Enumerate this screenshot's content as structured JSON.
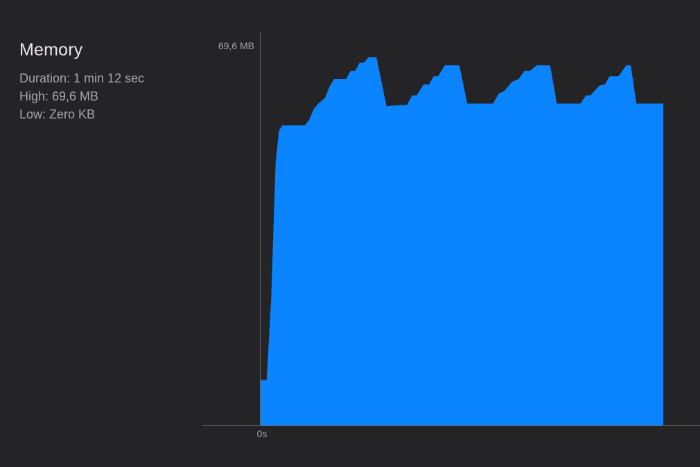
{
  "panel": {
    "title": "Memory",
    "stats": {
      "duration": "Duration: 1 min 12 sec",
      "high": "High: 69,6 MB",
      "low": "Low: Zero KB"
    }
  },
  "chart_data": {
    "type": "area",
    "title": "",
    "xlabel": "",
    "ylabel": "",
    "y_unit": "MB",
    "ylim": [
      0,
      69.6
    ],
    "y_tick_label": "69,6 MB",
    "x_tick_label": "0s",
    "x_duration_sec": 72,
    "x": [
      0.0,
      0.6,
      1.2,
      2.0,
      2.8,
      3.4,
      4.0,
      4.8,
      6.0,
      7.0,
      8.0,
      8.8,
      9.6,
      10.4,
      11.6,
      12.4,
      13.2,
      14.4,
      15.4,
      16.2,
      17.0,
      17.8,
      18.6,
      19.4,
      20.2,
      20.8,
      22.6,
      23.4,
      24.8,
      26.2,
      27.2,
      28.0,
      29.2,
      30.2,
      31.0,
      31.8,
      33.0,
      35.6,
      37.0,
      38.0,
      39.8,
      41.6,
      42.6,
      43.6,
      45.0,
      46.2,
      47.2,
      48.2,
      49.4,
      51.8,
      53.0,
      54.0,
      55.6,
      57.2,
      58.2,
      59.0,
      60.6,
      61.6,
      62.4,
      64.0,
      65.4,
      66.2,
      67.2,
      72.0,
      72.0
    ],
    "values": [
      8.3,
      8.3,
      8.3,
      23.0,
      48.0,
      54.0,
      55.0,
      55.0,
      55.0,
      55.0,
      55.0,
      56.0,
      58.0,
      59.0,
      60.0,
      62.0,
      63.5,
      63.5,
      63.5,
      65.0,
      65.0,
      66.5,
      66.5,
      67.5,
      67.5,
      67.5,
      58.5,
      58.6,
      58.7,
      58.7,
      60.5,
      60.5,
      62.5,
      62.5,
      64.0,
      64.0,
      66.0,
      66.0,
      59.0,
      59.0,
      59.0,
      59.0,
      60.8,
      61.3,
      63.0,
      63.5,
      65.0,
      65.0,
      66.0,
      66.0,
      59.0,
      59.0,
      59.0,
      59.0,
      60.5,
      60.5,
      62.3,
      62.5,
      64.0,
      64.0,
      66.0,
      66.0,
      59.0,
      59.0,
      0.0
    ],
    "series": [
      {
        "name": "",
        "color": "#0a84ff"
      }
    ],
    "axis_color": "#67666b",
    "tick_label_color": "#a4a3a8",
    "grid": false
  }
}
